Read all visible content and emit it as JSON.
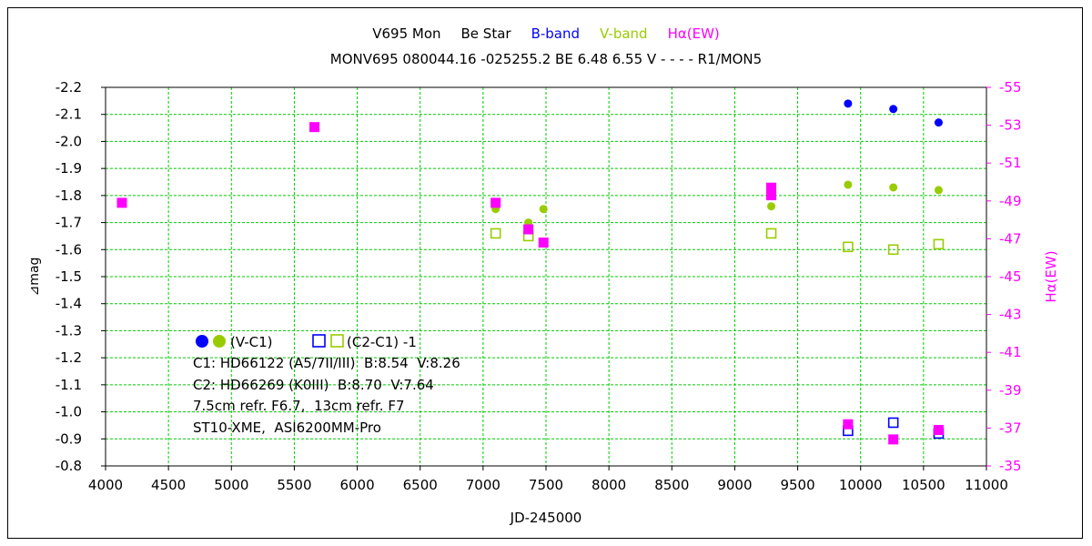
{
  "chart_data": {
    "type": "scatter",
    "title_parts": [
      {
        "text": "V695 Mon",
        "color": "#000000"
      },
      {
        "text": "Be Star",
        "color": "#000000"
      },
      {
        "text": "B-band",
        "color": "#0000ff"
      },
      {
        "text": "V-band",
        "color": "#99cc00"
      },
      {
        "text": "Hα(EW)",
        "color": "#ff00ff"
      }
    ],
    "subtitle": "MONV695 080044.16 -025255.2 BE 6.48 6.55 V - - - - R1/MON5",
    "xlabel": "JD-245000",
    "ylabel": "⊿mag",
    "y2label": "Hα(EW)",
    "xlim": [
      4000,
      11000
    ],
    "ylim": [
      -0.8,
      -2.2
    ],
    "y2lim": [
      -35,
      -55
    ],
    "xticks": [
      4000,
      4500,
      5000,
      5500,
      6000,
      6500,
      7000,
      7500,
      8000,
      8500,
      9000,
      9500,
      10000,
      10500,
      11000
    ],
    "yticks": [
      "-0.8",
      "-0.9",
      "-1.0",
      "-1.1",
      "-1.2",
      "-1.3",
      "-1.4",
      "-1.5",
      "-1.6",
      "-1.7",
      "-1.8",
      "-1.9",
      "-2.0",
      "-2.1",
      "-2.2"
    ],
    "y2ticks": [
      -35,
      -37,
      -39,
      -41,
      -43,
      -45,
      -47,
      -49,
      -51,
      -53,
      -55
    ],
    "grid": true,
    "colors": {
      "b": "#0000ff",
      "v": "#99cc00",
      "ha": "#ff00ff",
      "grid": "#00cc00"
    },
    "series": [
      {
        "name": "B (V-C1)",
        "marker": "filled-circle",
        "color": "#0000ff",
        "axis": "left",
        "points": [
          [
            9900,
            -2.14
          ],
          [
            10260,
            -2.12
          ],
          [
            10620,
            -2.07
          ]
        ]
      },
      {
        "name": "V (V-C1)",
        "marker": "filled-circle",
        "color": "#99cc00",
        "axis": "left",
        "points": [
          [
            7100,
            -1.75
          ],
          [
            7360,
            -1.7
          ],
          [
            7480,
            -1.75
          ],
          [
            9290,
            -1.76
          ],
          [
            9900,
            -1.84
          ],
          [
            10260,
            -1.83
          ],
          [
            10620,
            -1.82
          ]
        ]
      },
      {
        "name": "B (C2-C1)-1",
        "marker": "open-square",
        "color": "#0000ff",
        "axis": "left",
        "points": [
          [
            9900,
            -0.93
          ],
          [
            10260,
            -0.96
          ],
          [
            10620,
            -0.92
          ]
        ]
      },
      {
        "name": "V (C2-C1)-1",
        "marker": "open-square",
        "color": "#99cc00",
        "axis": "left",
        "points": [
          [
            7100,
            -1.66
          ],
          [
            7360,
            -1.65
          ],
          [
            9290,
            -1.66
          ],
          [
            9900,
            -1.61
          ],
          [
            10260,
            -1.6
          ],
          [
            10620,
            -1.62
          ]
        ]
      },
      {
        "name": "Hα(EW)",
        "marker": "filled-square",
        "color": "#ff00ff",
        "axis": "right",
        "points": [
          [
            4130,
            -48.9
          ],
          [
            5660,
            -52.9
          ],
          [
            7100,
            -48.9
          ],
          [
            7360,
            -47.5
          ],
          [
            7480,
            -46.8
          ],
          [
            9290,
            -49.3
          ],
          [
            9290,
            -49.7
          ],
          [
            9900,
            -37.2
          ],
          [
            10260,
            -36.4
          ],
          [
            10620,
            -36.9
          ]
        ]
      }
    ],
    "legend": {
      "line1_a": "(V-C1)",
      "line1_b": "(C2-C1) -1",
      "line2": "C1: HD66122 (A5/7II/III)  B:8.54  V:8.26",
      "line3": "C2: HD66269 (K0III)  B:8.70  V:7.64",
      "line4": "7.5cm refr. F6.7,  13cm refr. F7",
      "line5": "ST10-XME,  ASI6200MM-Pro"
    }
  }
}
